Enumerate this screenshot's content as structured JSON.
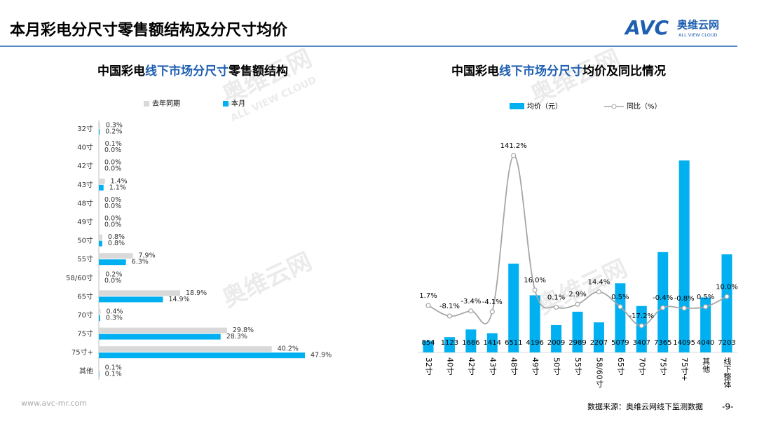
{
  "header": {
    "title": "本月彩电分尺寸零售额结构及分尺寸均价",
    "logo": "AVC",
    "logo_cn": "奥维云网",
    "logo_en": "ALL VIEW CLOUD"
  },
  "watermark": [
    "奥维云网",
    "ALL VIEW CLOUD"
  ],
  "chart_data": [
    {
      "type": "hbar",
      "title": [
        "中国彩电",
        "线下市场分尺寸",
        "零售额结构"
      ],
      "categories": [
        "32寸",
        "40寸",
        "42寸",
        "43寸",
        "48寸",
        "49寸",
        "50寸",
        "55寸",
        "58/60寸",
        "65寸",
        "70寸",
        "75寸",
        "75寸+",
        "其他"
      ],
      "series": [
        {
          "name": "去年同期",
          "color": "#d9d9d9",
          "values": [
            0.3,
            0.1,
            0.0,
            1.4,
            0.0,
            0.0,
            0.8,
            7.9,
            0.2,
            18.9,
            0.4,
            29.8,
            40.2,
            0.1
          ],
          "value_labels": [
            "0.3%",
            "0.1%",
            "0.0%",
            "1.4%",
            "0.0%",
            "0.0%",
            "0.8%",
            "7.9%",
            "0.2%",
            "18.9%",
            "0.4%",
            "29.8%",
            "40.2%",
            "0.1%"
          ]
        },
        {
          "name": "本月",
          "color": "#00b0f0",
          "values": [
            0.2,
            0.0,
            0.0,
            1.1,
            0.0,
            0.0,
            0.8,
            6.3,
            0.0,
            14.9,
            0.3,
            28.3,
            47.9,
            0.1
          ],
          "value_labels": [
            "0.2%",
            "0.0%",
            "0.0%",
            "1.1%",
            "0.0%",
            "0.0%",
            "0.8%",
            "6.3%",
            "0.0%",
            "14.9%",
            "0.3%",
            "28.3%",
            "47.9%",
            "0.1%"
          ]
        }
      ]
    },
    {
      "type": "bar-line",
      "title": [
        "中国彩电",
        "线下市场分尺寸",
        "均价及同比情况"
      ],
      "categories": [
        "32寸",
        "40寸",
        "42寸",
        "43寸",
        "48寸",
        "49寸",
        "50寸",
        "55寸",
        "58/60寸",
        "65寸",
        "70寸",
        "75寸",
        "75寸+",
        "其他",
        "线下整体"
      ],
      "series": [
        {
          "name": "均价（元）",
          "type": "bar",
          "color": "#00b0f0",
          "values": [
            854,
            1123,
            1686,
            1414,
            6511,
            4196,
            2009,
            2989,
            2207,
            5079,
            3407,
            7365,
            14095,
            4040,
            7203
          ]
        },
        {
          "name": "同比（%）",
          "type": "line",
          "color": "#a6a6a6",
          "values": [
            1.7,
            -8.1,
            -3.4,
            -4.1,
            141.2,
            16.0,
            0.1,
            2.9,
            14.4,
            0.5,
            -17.2,
            -0.4,
            -0.8,
            0.5,
            10.0
          ],
          "value_labels": [
            "1.7%",
            "-8.1%",
            "-3.4%",
            "-4.1%",
            "141.2%",
            "16.0%",
            "0.1%",
            "2.9%",
            "14.4%",
            "0.5%",
            "-17.2%",
            "-0.4%",
            "-0.8%",
            "0.5%",
            "10.0%"
          ]
        }
      ]
    }
  ],
  "footer": {
    "website": "www.avc-mr.com",
    "source": "数据来源：奥维云网线下监测数据",
    "page": "-9-"
  }
}
